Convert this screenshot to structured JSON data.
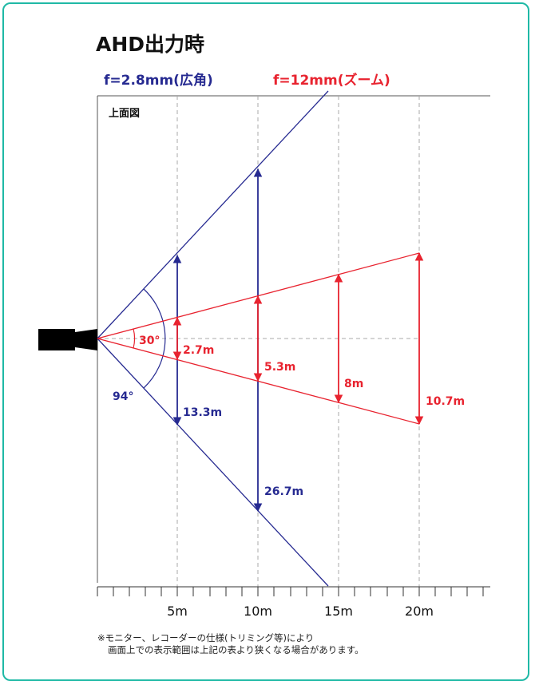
{
  "title": "AHD出力時",
  "lens_wide": {
    "label": "f=2.8mm(広角)",
    "color": "#262a91",
    "angle": "94°",
    "widths": [
      "13.3m",
      "26.7m"
    ]
  },
  "lens_tele": {
    "label": "f=12mm(ズーム)",
    "color": "#e8232f",
    "angle": "30°",
    "widths": [
      "2.7m",
      "5.3m",
      "8m",
      "10.7m"
    ]
  },
  "view_label": "上面図",
  "axis": {
    "ticks": [
      "5m",
      "10m",
      "15m",
      "20m"
    ]
  },
  "note": {
    "line1": "※モニター、レコーダーの仕様(トリミング等)により",
    "line2": "画面上での表示範囲は上記の表より狭くなる場合があります。"
  },
  "colors": {
    "frame": "#1fb9a6",
    "guides": "#aaaaaa",
    "camera": "#000000"
  }
}
